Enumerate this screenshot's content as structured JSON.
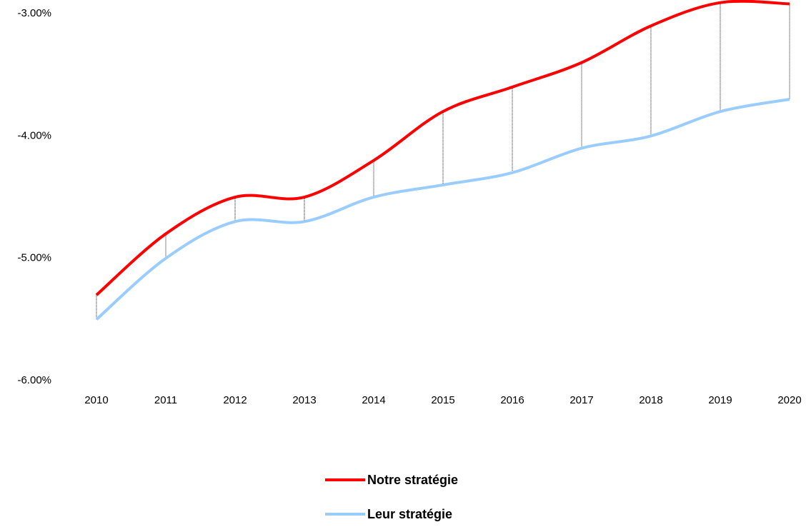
{
  "chart_data": {
    "type": "line",
    "x": [
      2010,
      2011,
      2012,
      2013,
      2014,
      2015,
      2016,
      2017,
      2018,
      2019,
      2020
    ],
    "xlim": [
      2010,
      2020
    ],
    "xticks": [
      2010,
      2011,
      2012,
      2013,
      2014,
      2015,
      2016,
      2017,
      2018,
      2019,
      2020
    ],
    "ylim": [
      -6,
      -2.85
    ],
    "yticks": [
      {
        "value": -3,
        "label": "-3.00%"
      },
      {
        "value": -4,
        "label": "-4.00%"
      },
      {
        "value": -5,
        "label": "-5.00%"
      },
      {
        "value": -6,
        "label": "-6.00%"
      }
    ],
    "grid": false,
    "legend": "bottom",
    "series": [
      {
        "name": "Notre stratégie",
        "color": "#ff0000",
        "values": [
          -5.3,
          -4.8,
          -4.5,
          -4.5,
          -4.2,
          -3.8,
          -3.6,
          -3.4,
          -3.1,
          -2.91,
          -2.92
        ]
      },
      {
        "name": "Leur stratégie",
        "color": "#99ccff",
        "values": [
          -5.5,
          -5.0,
          -4.7,
          -4.7,
          -4.5,
          -4.4,
          -4.3,
          -4.1,
          -4.0,
          -3.8,
          -3.7
        ]
      }
    ]
  }
}
